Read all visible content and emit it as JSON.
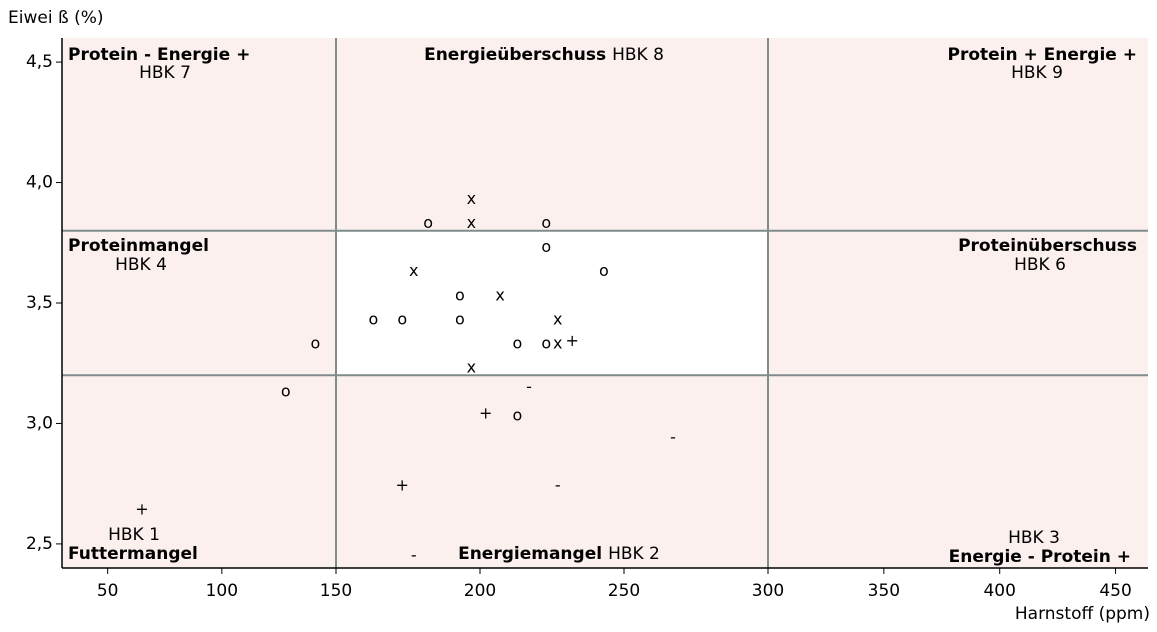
{
  "chart_data": {
    "type": "scatter",
    "y_label": "Eiwei ß (%)",
    "x_label": "Harnstoff (ppm)",
    "xlim": [
      30,
      464
    ],
    "ylim": [
      2.4,
      4.6
    ],
    "xticks": [
      50,
      100,
      150,
      200,
      250,
      300,
      350,
      400,
      450
    ],
    "yticks": [
      {
        "value": 2.5,
        "label": "2,5"
      },
      {
        "value": 3.0,
        "label": "3,0"
      },
      {
        "value": 3.5,
        "label": "3,5"
      },
      {
        "value": 4.0,
        "label": "4,0"
      },
      {
        "value": 4.5,
        "label": "4,5"
      }
    ],
    "zones": {
      "x": [
        150,
        300
      ],
      "y": [
        3.2,
        3.8
      ],
      "outer_color": "#fbf0ee",
      "inner_color": "#ffffff",
      "line_color": "#7f8c8c"
    },
    "annotations": [
      {
        "bold": "Protein -  Energie +",
        "label": "HBK 7"
      },
      {
        "bold": "Energieüberschuss",
        "label": "HBK 8"
      },
      {
        "bold": "Protein +  Energie +",
        "label": "HBK 9"
      },
      {
        "bold": "Proteinmangel",
        "label": "HBK 4"
      },
      {
        "bold": "Proteinüberschuss",
        "label": "HBK 6"
      },
      {
        "bold": "Futtermangel",
        "label": "HBK 1"
      },
      {
        "bold": "Energiemangel",
        "label": "HBK 2"
      },
      {
        "bold": "Energie -  Protein +",
        "label": "HBK 3"
      }
    ],
    "series": [
      {
        "marker": "o",
        "color": "#000000",
        "x": [
          182,
          223,
          223,
          243,
          193,
          163,
          173,
          193,
          141,
          213,
          223,
          128,
          213
        ],
        "values": [
          3.83,
          3.83,
          3.73,
          3.63,
          3.53,
          3.43,
          3.43,
          3.43,
          3.33,
          3.33,
          3.33,
          3.13,
          3.03
        ]
      },
      {
        "marker": "x",
        "color": "#000000",
        "x": [
          197,
          197,
          177,
          207,
          227,
          227,
          197
        ],
        "values": [
          3.93,
          3.83,
          3.63,
          3.53,
          3.43,
          3.33,
          3.23
        ]
      },
      {
        "marker": "+",
        "color": "#000000",
        "x": [
          232,
          202,
          173,
          65
        ],
        "values": [
          3.34,
          3.04,
          2.74,
          2.64
        ]
      },
      {
        "marker": "-",
        "color": "#000000",
        "x": [
          217,
          267,
          227,
          177
        ],
        "values": [
          3.15,
          2.94,
          2.74,
          2.45
        ]
      }
    ]
  }
}
